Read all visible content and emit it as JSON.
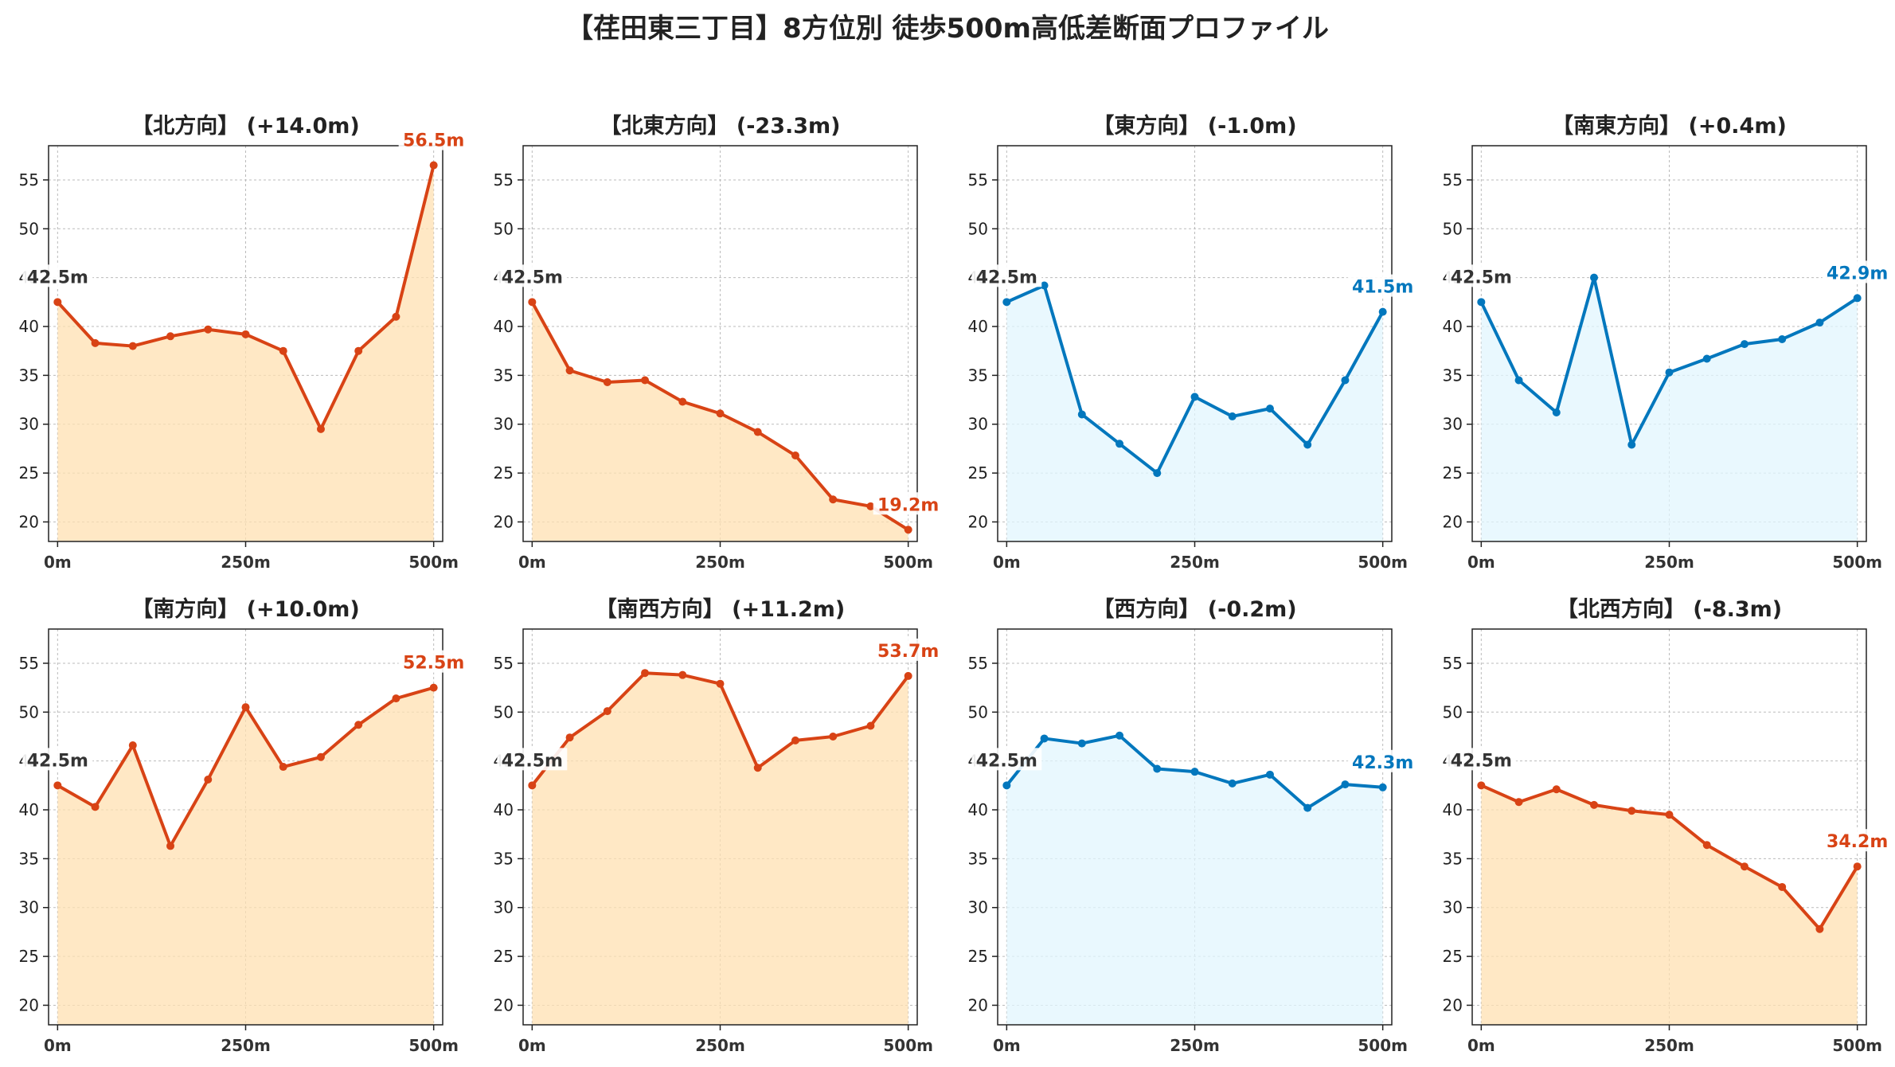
{
  "title": "【荏田東三丁目】8方位別 徒歩500m高低差断面プロファイル",
  "colors": {
    "up_line": "#d84315",
    "up_fill": "#ffe0b2",
    "down_line": "#0277bd",
    "down_fill": "#e1f5fe",
    "start_label": "#333333",
    "grid": "#bbbbbb"
  },
  "chart_data": [
    {
      "type": "line",
      "title": "【北方向】 (+14.0m)",
      "color": "up",
      "x": [
        0,
        50,
        100,
        150,
        200,
        250,
        300,
        350,
        400,
        450,
        500
      ],
      "y": [
        42.5,
        38.3,
        38.0,
        39.0,
        39.7,
        39.2,
        37.5,
        29.5,
        37.5,
        41.0,
        56.5
      ],
      "start_label": "42.5m",
      "end_label": "56.5m",
      "xticks": [
        0,
        250,
        500
      ],
      "xticklabels": [
        "0m",
        "250m",
        "500m"
      ],
      "yticks": [
        20,
        25,
        30,
        35,
        40,
        45,
        50,
        55
      ],
      "xlim": [
        -12,
        512
      ],
      "ylim": [
        18,
        58.5
      ],
      "grid": true
    },
    {
      "type": "line",
      "title": "【北東方向】 (-23.3m)",
      "color": "up",
      "x": [
        0,
        50,
        100,
        150,
        200,
        250,
        300,
        350,
        400,
        450,
        500
      ],
      "y": [
        42.5,
        35.5,
        34.3,
        34.5,
        32.3,
        31.1,
        29.2,
        26.8,
        22.3,
        21.6,
        19.2
      ],
      "start_label": "42.5m",
      "end_label": "19.2m",
      "xticks": [
        0,
        250,
        500
      ],
      "xticklabels": [
        "0m",
        "250m",
        "500m"
      ],
      "yticks": [
        20,
        25,
        30,
        35,
        40,
        45,
        50,
        55
      ],
      "xlim": [
        -12,
        512
      ],
      "ylim": [
        18,
        58.5
      ],
      "grid": true
    },
    {
      "type": "line",
      "title": "【東方向】 (-1.0m)",
      "color": "down",
      "x": [
        0,
        50,
        100,
        150,
        200,
        250,
        300,
        350,
        400,
        450,
        500
      ],
      "y": [
        42.5,
        44.2,
        31.0,
        28.0,
        25.0,
        32.8,
        30.8,
        31.6,
        27.9,
        34.5,
        41.5
      ],
      "start_label": "42.5m",
      "end_label": "41.5m",
      "xticks": [
        0,
        250,
        500
      ],
      "xticklabels": [
        "0m",
        "250m",
        "500m"
      ],
      "yticks": [
        20,
        25,
        30,
        35,
        40,
        45,
        50,
        55
      ],
      "xlim": [
        -12,
        512
      ],
      "ylim": [
        18,
        58.5
      ],
      "grid": true
    },
    {
      "type": "line",
      "title": "【南東方向】 (+0.4m)",
      "color": "down",
      "x": [
        0,
        50,
        100,
        150,
        200,
        250,
        300,
        350,
        400,
        450,
        500
      ],
      "y": [
        42.5,
        34.5,
        31.2,
        45.0,
        27.9,
        35.3,
        36.7,
        38.2,
        38.7,
        40.4,
        42.9
      ],
      "start_label": "42.5m",
      "end_label": "42.9m",
      "xticks": [
        0,
        250,
        500
      ],
      "xticklabels": [
        "0m",
        "250m",
        "500m"
      ],
      "yticks": [
        20,
        25,
        30,
        35,
        40,
        45,
        50,
        55
      ],
      "xlim": [
        -12,
        512
      ],
      "ylim": [
        18,
        58.5
      ],
      "grid": true
    },
    {
      "type": "line",
      "title": "【南方向】 (+10.0m)",
      "color": "up",
      "x": [
        0,
        50,
        100,
        150,
        200,
        250,
        300,
        350,
        400,
        450,
        500
      ],
      "y": [
        42.5,
        40.3,
        46.6,
        36.3,
        43.1,
        50.5,
        44.4,
        45.4,
        48.7,
        51.4,
        52.5
      ],
      "start_label": "42.5m",
      "end_label": "52.5m",
      "xticks": [
        0,
        250,
        500
      ],
      "xticklabels": [
        "0m",
        "250m",
        "500m"
      ],
      "yticks": [
        20,
        25,
        30,
        35,
        40,
        45,
        50,
        55
      ],
      "xlim": [
        -12,
        512
      ],
      "ylim": [
        18,
        58.5
      ],
      "grid": true
    },
    {
      "type": "line",
      "title": "【南西方向】 (+11.2m)",
      "color": "up",
      "x": [
        0,
        50,
        100,
        150,
        200,
        250,
        300,
        350,
        400,
        450,
        500
      ],
      "y": [
        42.5,
        47.4,
        50.1,
        54.0,
        53.8,
        52.9,
        44.3,
        47.1,
        47.5,
        48.6,
        53.7
      ],
      "start_label": "42.5m",
      "end_label": "53.7m",
      "xticks": [
        0,
        250,
        500
      ],
      "xticklabels": [
        "0m",
        "250m",
        "500m"
      ],
      "yticks": [
        20,
        25,
        30,
        35,
        40,
        45,
        50,
        55
      ],
      "xlim": [
        -12,
        512
      ],
      "ylim": [
        18,
        58.5
      ],
      "grid": true
    },
    {
      "type": "line",
      "title": "【西方向】 (-0.2m)",
      "color": "down",
      "x": [
        0,
        50,
        100,
        150,
        200,
        250,
        300,
        350,
        400,
        450,
        500
      ],
      "y": [
        42.5,
        47.3,
        46.8,
        47.6,
        44.2,
        43.9,
        42.7,
        43.6,
        40.2,
        42.6,
        42.3
      ],
      "start_label": "42.5m",
      "end_label": "42.3m",
      "xticks": [
        0,
        250,
        500
      ],
      "xticklabels": [
        "0m",
        "250m",
        "500m"
      ],
      "yticks": [
        20,
        25,
        30,
        35,
        40,
        45,
        50,
        55
      ],
      "xlim": [
        -12,
        512
      ],
      "ylim": [
        18,
        58.5
      ],
      "grid": true
    },
    {
      "type": "line",
      "title": "【北西方向】 (-8.3m)",
      "color": "up",
      "x": [
        0,
        50,
        100,
        150,
        200,
        250,
        300,
        350,
        400,
        450,
        500
      ],
      "y": [
        42.5,
        40.8,
        42.1,
        40.5,
        39.9,
        39.5,
        36.4,
        34.2,
        32.1,
        27.8,
        34.2
      ],
      "start_label": "42.5m",
      "end_label": "34.2m",
      "xticks": [
        0,
        250,
        500
      ],
      "xticklabels": [
        "0m",
        "250m",
        "500m"
      ],
      "yticks": [
        20,
        25,
        30,
        35,
        40,
        45,
        50,
        55
      ],
      "xlim": [
        -12,
        512
      ],
      "ylim": [
        18,
        58.5
      ],
      "grid": true
    }
  ]
}
